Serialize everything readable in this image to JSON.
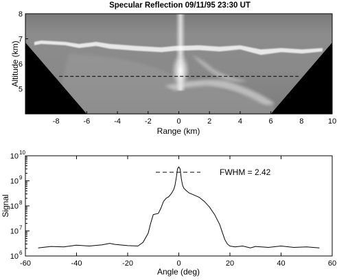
{
  "chart_data": [
    {
      "type": "heatmap",
      "title": "Specular Reflection 09/11/95 23:30 UT",
      "xlabel": "Range (km)",
      "ylabel": "Altitude (km)",
      "xlim": [
        -10,
        10
      ],
      "ylim": [
        4,
        8
      ],
      "xticks": [
        -8,
        -6,
        -4,
        -2,
        0,
        2,
        4,
        6,
        8,
        10
      ],
      "yticks": [
        5,
        6,
        7,
        8
      ],
      "colormap": "grayscale",
      "dashed_reference_altitude_km": 5.5,
      "masked_region": "black wedges outside scan cone (|range| > ~6 km at 4 km altitude, ~10 km at 6.9 km altitude)",
      "features": {
        "cloud_top_layer_altitude_km": 6.9,
        "vertical_spike_range_km": 0,
        "spike_bright_core_altitude_km": [
          5.0,
          6.0
        ]
      }
    },
    {
      "type": "line",
      "xlabel": "Angle (deg)",
      "ylabel": "Signal",
      "xlim": [
        -60,
        60
      ],
      "ylim": [
        1000000,
        10000000000
      ],
      "yscale": "log",
      "xticks": [
        -60,
        -40,
        -20,
        0,
        20,
        40,
        60
      ],
      "ytick_labels": [
        {
          "base": "10",
          "exp": "6"
        },
        {
          "base": "10",
          "exp": "7"
        },
        {
          "base": "10",
          "exp": "8"
        },
        {
          "base": "10",
          "exp": "9"
        },
        {
          "base": "10",
          "exp": "10"
        }
      ],
      "annotation": "FWHM = 2.42",
      "series": [
        {
          "x": [
            -55,
            -50,
            -45,
            -40,
            -35,
            -30,
            -27,
            -25,
            -20,
            -16,
            -14,
            -12,
            -11,
            -10,
            -8,
            -7,
            -6,
            -5,
            -4,
            -3,
            -2,
            -1.5,
            -1,
            -0.5,
            0,
            0.5,
            1,
            1.5,
            2,
            3,
            4,
            6,
            8,
            10,
            12,
            14,
            16,
            17,
            18,
            19,
            20,
            22,
            25,
            28,
            30,
            35,
            40,
            45,
            50,
            55
          ],
          "y": [
            2100000.0,
            2400000.0,
            2300000.0,
            2700000.0,
            2500000.0,
            2800000.0,
            3200000.0,
            2900000.0,
            2600000.0,
            2500000.0,
            3500000.0,
            8000000.0,
            20000000.0,
            45000000.0,
            50000000.0,
            80000000.0,
            150000000.0,
            200000000.0,
            230000000.0,
            300000000.0,
            450000000.0,
            650000000.0,
            1300000000.0,
            3000000000.0,
            3600000000.0,
            3000000000.0,
            1200000000.0,
            650000000.0,
            500000000.0,
            400000000.0,
            330000000.0,
            270000000.0,
            220000000.0,
            150000000.0,
            90000000.0,
            45000000.0,
            18000000.0,
            9000000.0,
            4500000.0,
            3000000.0,
            2500000.0,
            2300000.0,
            2500000.0,
            2100000.0,
            2400000.0,
            2200000.0,
            2500000.0,
            2200000.0,
            2300000.0,
            2100000.0
          ]
        }
      ]
    }
  ]
}
